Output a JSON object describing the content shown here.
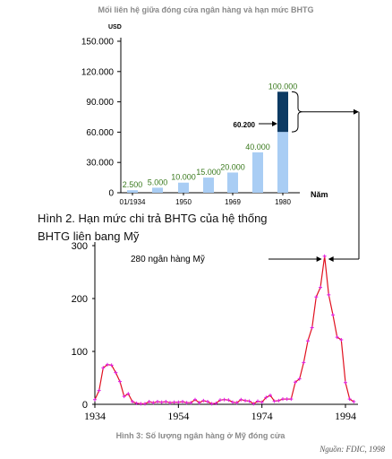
{
  "title": "Mối liên hệ giữa đóng cửa ngân hàng và hạn mức BHTG",
  "top_caption": "Hình 2. Hạn mức chi trả BHTG của hệ thống BHTG liên bang Mỹ",
  "bottom_caption": "Hình 3: Số lượng ngân hàng ở Mỹ đóng cửa",
  "source": "Nguồn: FDIC, 1998",
  "colors": {
    "bar": "#a9cdf4",
    "bar_top": "#0c3a63",
    "value_label": "#3a7a1e",
    "line": "#e0101e",
    "marker": "#e11be0",
    "title": "#8a8a8a"
  },
  "chart_data": [
    {
      "type": "bar",
      "ylabel": "USD",
      "xlabel": "Năm",
      "ylim": [
        0,
        150000
      ],
      "y_ticks": [
        "0",
        "30.000",
        "60.000",
        "90.000",
        "120.000",
        "150.000"
      ],
      "x_ticks": [
        "01/1934",
        "1950",
        "1969",
        "1980"
      ],
      "values": [
        2500,
        5000,
        10000,
        15000,
        20000,
        40000,
        100000
      ],
      "value_labels": [
        "2.500",
        "5.000",
        "10.000",
        "15.000",
        "20.000",
        "40.000",
        "100.000"
      ],
      "highlight": {
        "value": 60200,
        "label": "60.200"
      }
    },
    {
      "type": "line",
      "ylim": [
        0,
        300
      ],
      "y_ticks": [
        "0",
        "100",
        "200",
        "300"
      ],
      "x_ticks": [
        "1934",
        "1954",
        "1974",
        "1994"
      ],
      "annotation": "280 ngân hàng Mỹ",
      "x": [
        1934,
        1935,
        1936,
        1937,
        1938,
        1939,
        1940,
        1941,
        1942,
        1943,
        1944,
        1945,
        1946,
        1947,
        1948,
        1949,
        1950,
        1951,
        1952,
        1953,
        1954,
        1955,
        1956,
        1957,
        1958,
        1959,
        1960,
        1961,
        1962,
        1963,
        1964,
        1965,
        1966,
        1967,
        1968,
        1969,
        1970,
        1971,
        1972,
        1973,
        1974,
        1975,
        1976,
        1977,
        1978,
        1979,
        1980,
        1981,
        1982,
        1983,
        1984,
        1985,
        1986,
        1987,
        1988,
        1989,
        1990,
        1991,
        1992,
        1993,
        1994,
        1995,
        1996
      ],
      "y": [
        9,
        26,
        69,
        75,
        74,
        60,
        43,
        15,
        20,
        5,
        2,
        1,
        1,
        5,
        3,
        5,
        4,
        5,
        3,
        4,
        4,
        5,
        3,
        3,
        9,
        3,
        7,
        5,
        1,
        2,
        8,
        9,
        8,
        4,
        3,
        9,
        7,
        6,
        1,
        6,
        4,
        13,
        17,
        6,
        7,
        10,
        10,
        10,
        42,
        48,
        79,
        120,
        145,
        203,
        221,
        280,
        207,
        169,
        127,
        122,
        41,
        10,
        5
      ]
    }
  ]
}
